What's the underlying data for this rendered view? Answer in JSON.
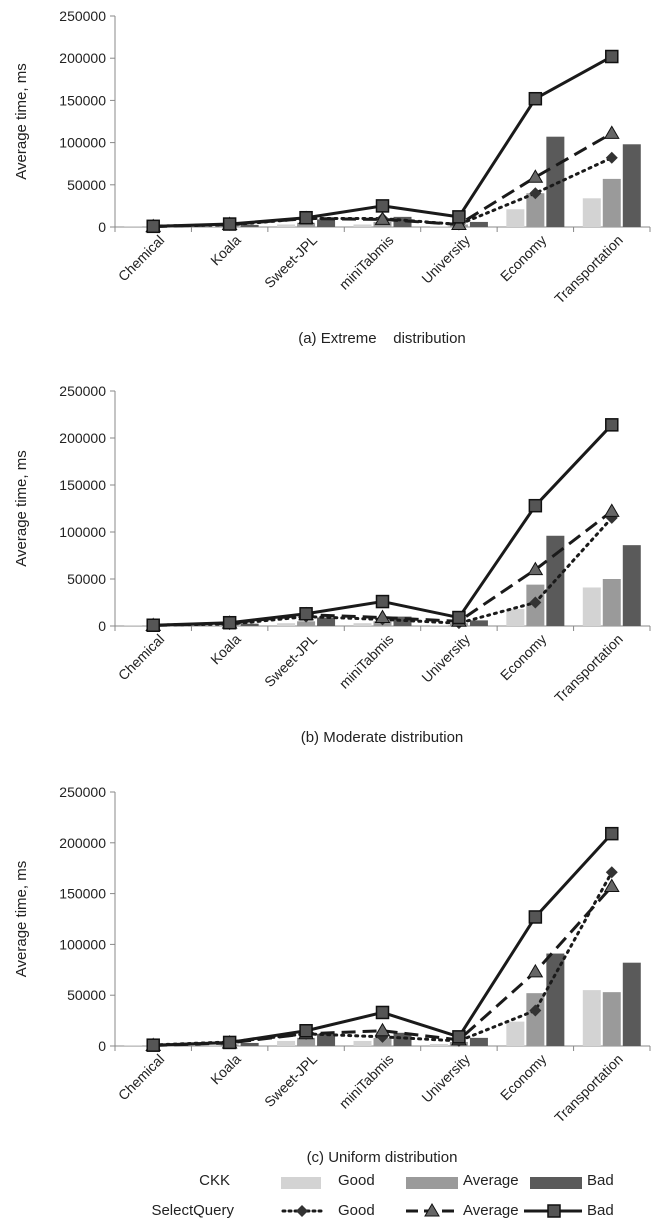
{
  "colors": {
    "good": "#d3d3d3",
    "average": "#9a9a9a",
    "bad": "#5a5a5a",
    "line": "#1a1a1a",
    "axis": "#888888"
  },
  "legend": {
    "ckk_label": "CKK",
    "sq_label": "SelectQuery",
    "good": "Good",
    "average": "Average",
    "bad": "Bad"
  },
  "chart_data": [
    {
      "type": "bar",
      "caption": "(a) Extreme    distribution",
      "ylabel": "Average time, ms",
      "ylim": [
        0,
        250000
      ],
      "yticks": [
        0,
        50000,
        100000,
        150000,
        200000,
        250000
      ],
      "categories": [
        "Chemical",
        "Koala",
        "Sweet-JPL",
        "miniTabmis",
        "University",
        "Economy",
        "Transportation"
      ],
      "series": [
        {
          "name": "Good",
          "group": "CKK",
          "kind": "bar",
          "values": [
            300,
            1000,
            3000,
            3000,
            1000,
            21000,
            34000
          ]
        },
        {
          "name": "Average",
          "group": "CKK",
          "kind": "bar",
          "values": [
            500,
            1500,
            5000,
            6000,
            3000,
            40000,
            57000
          ]
        },
        {
          "name": "Bad",
          "group": "CKK",
          "kind": "bar",
          "values": [
            800,
            2500,
            9000,
            12000,
            6000,
            107000,
            98000
          ]
        },
        {
          "name": "Good",
          "group": "SelectQuery",
          "kind": "line",
          "values": [
            1000,
            2500,
            10000,
            10000,
            3000,
            40000,
            82000
          ]
        },
        {
          "name": "Average",
          "group": "SelectQuery",
          "kind": "line",
          "values": [
            500,
            3000,
            10000,
            9000,
            3000,
            59000,
            111000
          ]
        },
        {
          "name": "Bad",
          "group": "SelectQuery",
          "kind": "line",
          "values": [
            800,
            3500,
            11000,
            25000,
            12000,
            152000,
            202000
          ]
        }
      ]
    },
    {
      "type": "bar",
      "caption": "(b) Moderate distribution",
      "ylabel": "Average time, ms",
      "ylim": [
        0,
        250000
      ],
      "yticks": [
        0,
        50000,
        100000,
        150000,
        200000,
        250000
      ],
      "categories": [
        "Chemical",
        "Koala",
        "Sweet-JPL",
        "miniTabmis",
        "University",
        "Economy",
        "Transportation"
      ],
      "series": [
        {
          "name": "Good",
          "group": "CKK",
          "kind": "bar",
          "values": [
            300,
            1000,
            3000,
            3000,
            1000,
            18000,
            41000
          ]
        },
        {
          "name": "Average",
          "group": "CKK",
          "kind": "bar",
          "values": [
            500,
            1500,
            5000,
            5000,
            3000,
            44000,
            50000
          ]
        },
        {
          "name": "Bad",
          "group": "CKK",
          "kind": "bar",
          "values": [
            800,
            2500,
            9000,
            10000,
            6000,
            96000,
            86000
          ]
        },
        {
          "name": "Good",
          "group": "SelectQuery",
          "kind": "line",
          "values": [
            1000,
            2000,
            10000,
            7000,
            3000,
            25000,
            115000
          ]
        },
        {
          "name": "Average",
          "group": "SelectQuery",
          "kind": "line",
          "values": [
            500,
            3000,
            12000,
            9000,
            5000,
            60000,
            122000
          ]
        },
        {
          "name": "Bad",
          "group": "SelectQuery",
          "kind": "line",
          "values": [
            800,
            3500,
            13000,
            26000,
            9000,
            128000,
            214000
          ]
        }
      ]
    },
    {
      "type": "bar",
      "caption": "(c) Uniform distribution",
      "ylabel": "Average time, ms",
      "ylim": [
        0,
        250000
      ],
      "yticks": [
        0,
        50000,
        100000,
        150000,
        200000,
        250000
      ],
      "categories": [
        "Chemical",
        "Koala",
        "Sweet-JPL",
        "miniTabmis",
        "University",
        "Economy",
        "Transportation"
      ],
      "series": [
        {
          "name": "Good",
          "group": "CKK",
          "kind": "bar",
          "values": [
            300,
            1000,
            5000,
            5000,
            2000,
            24000,
            55000
          ]
        },
        {
          "name": "Average",
          "group": "CKK",
          "kind": "bar",
          "values": [
            500,
            1500,
            8000,
            8000,
            4000,
            52000,
            53000
          ]
        },
        {
          "name": "Bad",
          "group": "CKK",
          "kind": "bar",
          "values": [
            800,
            3000,
            12000,
            13000,
            8000,
            91000,
            82000
          ]
        },
        {
          "name": "Good",
          "group": "SelectQuery",
          "kind": "line",
          "values": [
            1000,
            4000,
            12000,
            9000,
            5000,
            35000,
            171000
          ]
        },
        {
          "name": "Average",
          "group": "SelectQuery",
          "kind": "line",
          "values": [
            500,
            3000,
            12000,
            15000,
            6000,
            73000,
            157000
          ]
        },
        {
          "name": "Bad",
          "group": "SelectQuery",
          "kind": "line",
          "values": [
            800,
            3500,
            15000,
            33000,
            9000,
            127000,
            209000
          ]
        }
      ]
    }
  ]
}
